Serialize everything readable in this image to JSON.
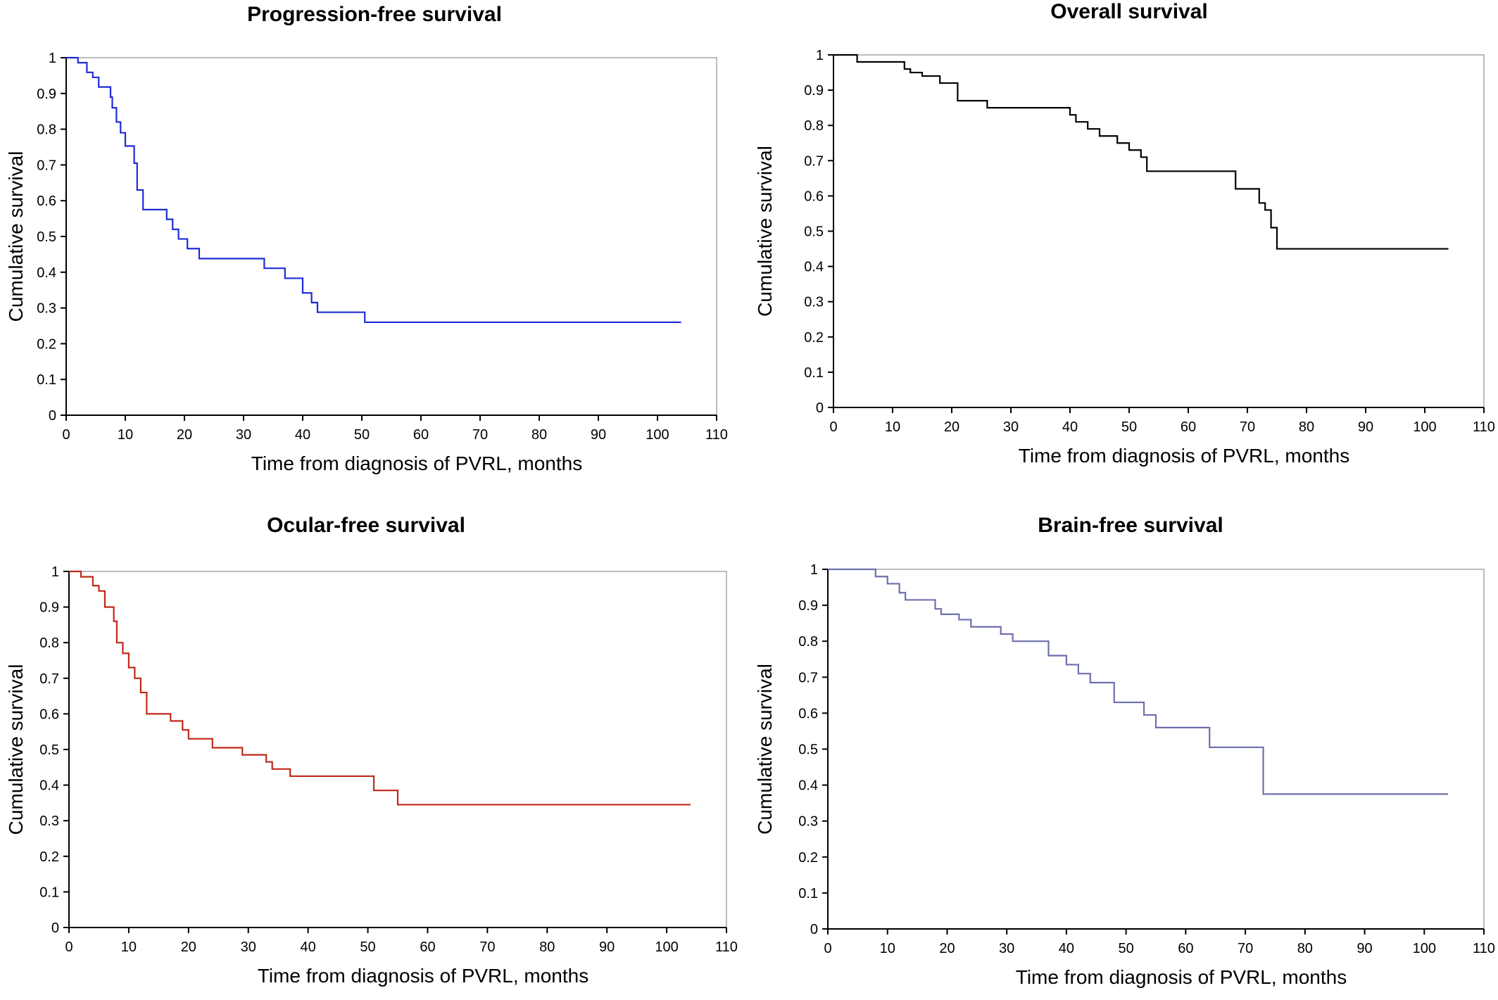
{
  "chart_data": [
    {
      "type": "line",
      "title": "Progression-free survival",
      "xlabel": "Time from diagnosis of PVRL, months",
      "ylabel": "Cumulative survival",
      "xlim": [
        0,
        110
      ],
      "ylim": [
        0,
        1
      ],
      "xticks": [
        0,
        10,
        20,
        30,
        40,
        50,
        60,
        70,
        80,
        90,
        100,
        110
      ],
      "yticks": [
        0,
        0.1,
        0.2,
        0.3,
        0.4,
        0.5,
        0.6,
        0.7,
        0.8,
        0.9,
        1
      ],
      "grid": false,
      "color": "#1f2bd6",
      "step": true,
      "series": [
        {
          "x": [
            0,
            2,
            3.5,
            4.5,
            5.5,
            7.5,
            7.8,
            8.5,
            9.2,
            10,
            11.5,
            12,
            13,
            17,
            18,
            19,
            20.5,
            22.5,
            33.5,
            37,
            40,
            41.5,
            42.5,
            50.5,
            104
          ],
          "y": [
            1,
            0.986,
            0.959,
            0.945,
            0.918,
            0.89,
            0.86,
            0.82,
            0.79,
            0.753,
            0.705,
            0.63,
            0.575,
            0.548,
            0.52,
            0.493,
            0.466,
            0.438,
            0.411,
            0.383,
            0.342,
            0.315,
            0.288,
            0.26,
            0.26
          ]
        }
      ]
    },
    {
      "type": "line",
      "title": "Overall survival",
      "xlabel": "Time from diagnosis of PVRL, months",
      "ylabel": "Cumulative survival",
      "xlim": [
        0,
        110
      ],
      "ylim": [
        0,
        1
      ],
      "xticks": [
        0,
        10,
        20,
        30,
        40,
        50,
        60,
        70,
        80,
        90,
        100,
        110
      ],
      "yticks": [
        0,
        0.1,
        0.2,
        0.3,
        0.4,
        0.5,
        0.6,
        0.7,
        0.8,
        0.9,
        1
      ],
      "grid": false,
      "color": "#000000",
      "step": true,
      "series": [
        {
          "x": [
            0,
            4,
            12,
            13,
            15,
            18,
            21,
            26,
            40,
            41,
            43,
            45,
            48,
            50,
            52,
            53,
            68,
            72,
            73,
            74,
            75,
            104
          ],
          "y": [
            1,
            0.98,
            0.96,
            0.95,
            0.94,
            0.92,
            0.87,
            0.85,
            0.83,
            0.81,
            0.79,
            0.77,
            0.75,
            0.73,
            0.71,
            0.67,
            0.62,
            0.58,
            0.56,
            0.51,
            0.45,
            0.45
          ]
        }
      ]
    },
    {
      "type": "line",
      "title": "Ocular-free survival",
      "xlabel": "Time from diagnosis of PVRL, months",
      "ylabel": "Cumulative survival",
      "xlim": [
        0,
        110
      ],
      "ylim": [
        0,
        1
      ],
      "xticks": [
        0,
        10,
        20,
        30,
        40,
        50,
        60,
        70,
        80,
        90,
        100,
        110
      ],
      "yticks": [
        0,
        0.1,
        0.2,
        0.3,
        0.4,
        0.5,
        0.6,
        0.7,
        0.8,
        0.9,
        1
      ],
      "grid": false,
      "color": "#c0291a",
      "step": true,
      "series": [
        {
          "x": [
            0,
            2,
            4,
            5,
            6,
            7.5,
            8,
            9,
            10,
            11,
            12,
            13,
            17,
            19,
            20,
            24,
            29,
            33,
            34,
            37,
            51,
            55,
            104
          ],
          "y": [
            1,
            0.985,
            0.96,
            0.945,
            0.9,
            0.86,
            0.8,
            0.77,
            0.73,
            0.7,
            0.66,
            0.6,
            0.58,
            0.555,
            0.53,
            0.505,
            0.485,
            0.465,
            0.445,
            0.425,
            0.385,
            0.345,
            0.345
          ]
        }
      ]
    },
    {
      "type": "line",
      "title": "Brain-free survival",
      "xlabel": "Time from diagnosis of PVRL, months",
      "ylabel": "Cumulative survival",
      "xlim": [
        0,
        110
      ],
      "ylim": [
        0,
        1
      ],
      "xticks": [
        0,
        10,
        20,
        30,
        40,
        50,
        60,
        70,
        80,
        90,
        100,
        110
      ],
      "yticks": [
        0,
        0.1,
        0.2,
        0.3,
        0.4,
        0.5,
        0.6,
        0.7,
        0.8,
        0.9,
        1
      ],
      "grid": false,
      "color": "#6d6fae",
      "step": true,
      "series": [
        {
          "x": [
            0,
            8,
            10,
            12,
            13,
            18,
            19,
            22,
            24,
            29,
            31,
            37,
            40,
            42,
            44,
            48,
            53,
            55,
            64,
            73,
            104
          ],
          "y": [
            1,
            0.98,
            0.96,
            0.935,
            0.915,
            0.89,
            0.875,
            0.86,
            0.84,
            0.82,
            0.8,
            0.76,
            0.735,
            0.71,
            0.685,
            0.63,
            0.595,
            0.56,
            0.505,
            0.375,
            0.375
          ]
        }
      ]
    }
  ]
}
